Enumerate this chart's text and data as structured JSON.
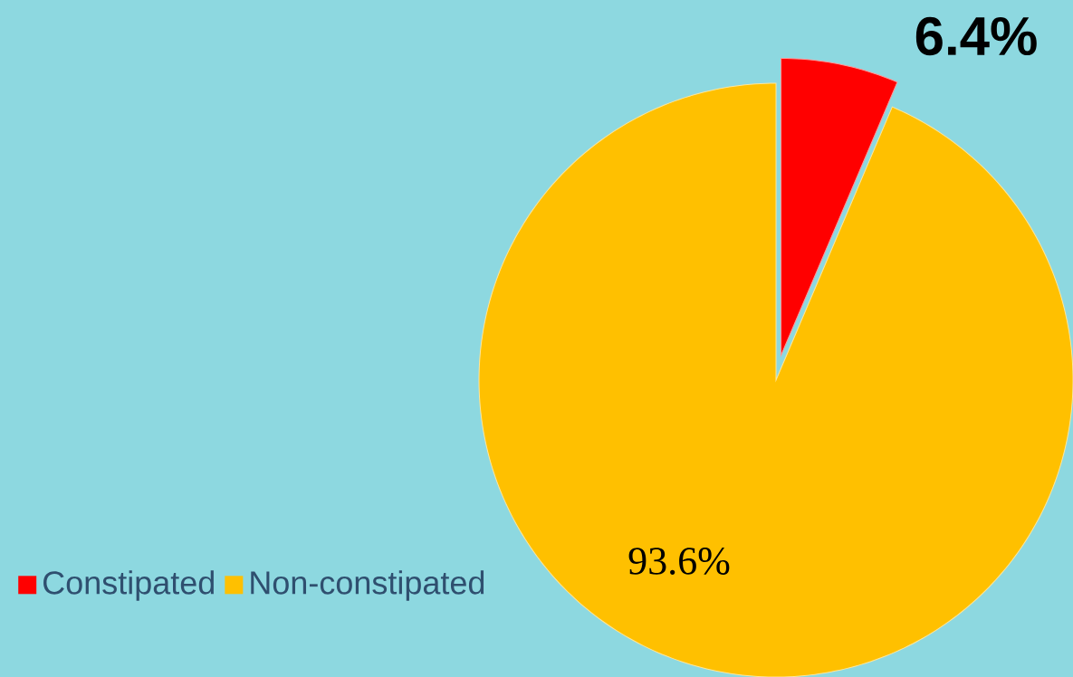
{
  "chart_data": {
    "type": "pie",
    "categories": [
      "Constipated",
      "Non-constipated"
    ],
    "values": [
      6.4,
      93.6
    ],
    "colors": [
      "#ff0000",
      "#ffc000"
    ],
    "value_labels": [
      "6.4%",
      "93.6%"
    ],
    "legend": "bottom left"
  }
}
